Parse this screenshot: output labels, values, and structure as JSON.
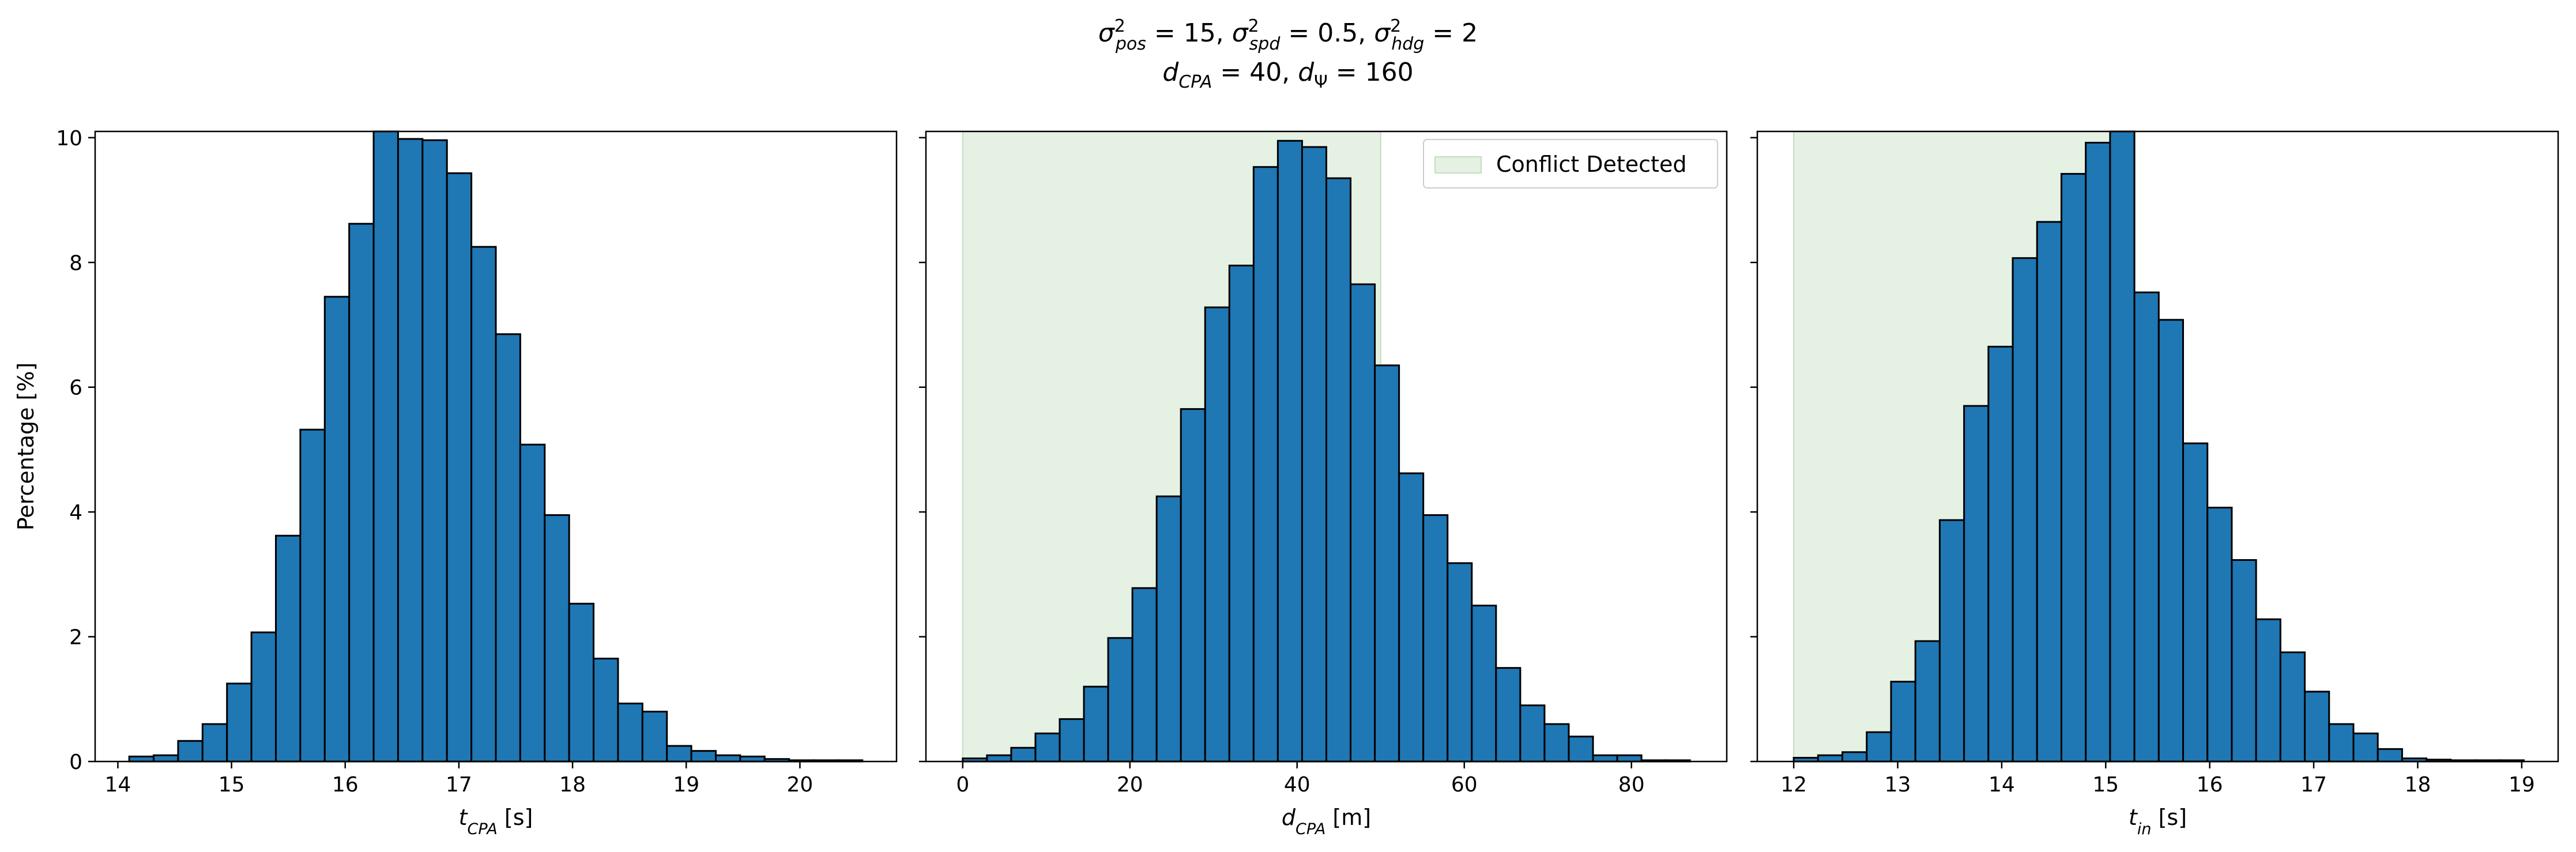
{
  "figure": {
    "title_line1": "σ²pos = 15, σ²spd = 0.5, σ²hdg = 2",
    "title_line2": "dCPA = 40, dΨ = 160"
  },
  "chart_data": [
    {
      "type": "bar",
      "subtype": "histogram",
      "xlabel": "tCPA [s]",
      "ylabel": "Percentage [%]",
      "xlim": [
        13.8,
        20.85
      ],
      "ylim": [
        0,
        10.1
      ],
      "xticks": [
        14,
        15,
        16,
        17,
        18,
        19,
        20
      ],
      "yticks": [
        0,
        2,
        4,
        6,
        8,
        10
      ],
      "bin_start": 14.1,
      "bin_width": 0.215,
      "values": [
        0.08,
        0.1,
        0.33,
        0.6,
        1.25,
        2.07,
        3.62,
        5.32,
        7.45,
        8.62,
        10.1,
        9.98,
        9.96,
        9.43,
        8.25,
        6.85,
        5.08,
        3.95,
        2.53,
        1.65,
        0.93,
        0.8,
        0.25,
        0.17,
        0.1,
        0.08,
        0.04,
        0.02,
        0.02,
        0.02
      ],
      "shaded_region": null,
      "legend": null
    },
    {
      "type": "bar",
      "subtype": "histogram",
      "xlabel": "dCPA [m]",
      "ylabel": "",
      "xlim": [
        -4.4,
        91.4
      ],
      "ylim": [
        0,
        10.1
      ],
      "xticks": [
        0,
        20,
        40,
        60,
        80
      ],
      "yticks": [
        0,
        2,
        4,
        6,
        8,
        10
      ],
      "bin_start": 0,
      "bin_width": 2.9,
      "values": [
        0.05,
        0.1,
        0.22,
        0.45,
        0.68,
        1.2,
        1.98,
        2.78,
        4.25,
        5.65,
        7.28,
        7.95,
        9.53,
        9.95,
        9.85,
        9.35,
        7.65,
        6.35,
        4.62,
        3.95,
        3.18,
        2.5,
        1.5,
        0.9,
        0.6,
        0.4,
        0.1,
        0.1,
        0.02,
        0.02
      ],
      "shaded_region": {
        "x0": 0,
        "x1": 50,
        "color": "#e5f1e2",
        "edge": "#c3dcc0"
      },
      "legend": {
        "label": "Conflict Detected",
        "position": "upper right"
      }
    },
    {
      "type": "bar",
      "subtype": "histogram",
      "xlabel": "tin [s]",
      "ylabel": "",
      "xlim": [
        11.65,
        19.35
      ],
      "ylim": [
        0,
        10.1
      ],
      "xticks": [
        12,
        13,
        14,
        15,
        16,
        17,
        18,
        19
      ],
      "yticks": [
        0,
        2,
        4,
        6,
        8,
        10
      ],
      "bin_start": 12.0,
      "bin_width": 0.234,
      "values": [
        0.06,
        0.1,
        0.15,
        0.47,
        1.28,
        1.93,
        3.87,
        5.7,
        6.65,
        8.07,
        8.65,
        9.42,
        9.92,
        10.1,
        7.52,
        7.08,
        5.1,
        4.07,
        3.23,
        2.28,
        1.75,
        1.12,
        0.6,
        0.45,
        0.2,
        0.05,
        0.03,
        0.02,
        0.02,
        0.02
      ],
      "shaded_region": {
        "x0": 12,
        "x1": 15.27,
        "color": "#e5f1e2",
        "edge": "#c3dcc0"
      },
      "legend": null
    }
  ]
}
